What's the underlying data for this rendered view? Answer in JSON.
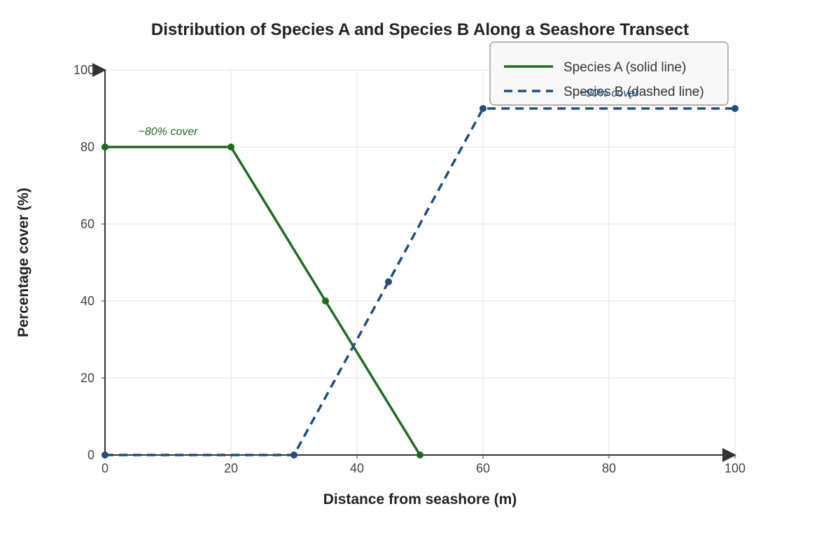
{
  "chart_data": {
    "type": "line",
    "title": "Distribution of Species A and Species B Along a Seashore Transect",
    "xlabel": "Distance from seashore (m)",
    "ylabel": "Percentage cover (%)",
    "xlim": [
      0,
      100
    ],
    "ylim": [
      0,
      100
    ],
    "x_ticks": [
      0,
      20,
      40,
      60,
      80,
      100
    ],
    "y_ticks": [
      0,
      20,
      40,
      60,
      80,
      100
    ],
    "grid": true,
    "legend_position": "top-right",
    "series": [
      {
        "name": "Species A (solid line)",
        "style": "solid",
        "color": "#1f6b1f",
        "x": [
          0,
          20,
          35,
          50
        ],
        "y": [
          80,
          80,
          40,
          0
        ]
      },
      {
        "name": "Species B (dashed line)",
        "style": "dashed",
        "color": "#1f4e80",
        "x": [
          0,
          30,
          45,
          60,
          100
        ],
        "y": [
          0,
          0,
          45,
          90,
          90
        ]
      }
    ],
    "annotations": [
      {
        "text": "~80% cover",
        "series": 0,
        "x": 10,
        "y": 84
      },
      {
        "text": "~90% cover",
        "series": 1,
        "x": 80,
        "y": 94
      }
    ]
  }
}
